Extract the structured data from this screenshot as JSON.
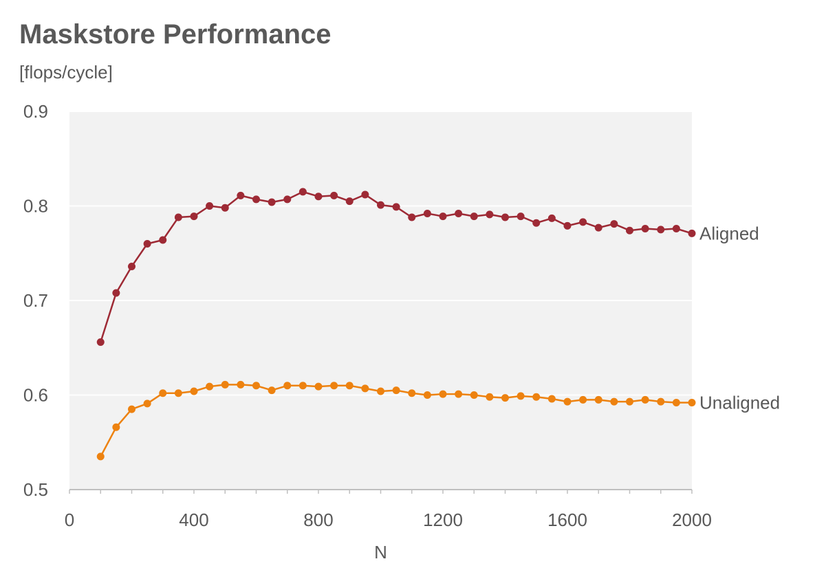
{
  "chart_data": {
    "type": "line",
    "title": "Maskstore Performance",
    "subtitle": "[flops/cycle]",
    "xlabel": "N",
    "ylabel": "",
    "xlim": [
      0,
      2000
    ],
    "ylim": [
      0.5,
      0.9
    ],
    "x_ticks": [
      0,
      400,
      800,
      1200,
      1600,
      2000
    ],
    "x_tick_labels": [
      "0",
      "400",
      "800",
      "1200",
      "1600",
      "2000"
    ],
    "y_ticks": [
      0.5,
      0.6,
      0.7,
      0.8,
      0.9
    ],
    "y_tick_labels": [
      "0.5",
      "0.6",
      "0.7",
      "0.8",
      "0.9"
    ],
    "grid": true,
    "legend": "series labels at right end of lines",
    "x": [
      100,
      150,
      200,
      250,
      300,
      350,
      400,
      450,
      500,
      550,
      600,
      650,
      700,
      750,
      800,
      850,
      900,
      950,
      1000,
      1050,
      1100,
      1150,
      1200,
      1250,
      1300,
      1350,
      1400,
      1450,
      1500,
      1550,
      1600,
      1650,
      1700,
      1750,
      1800,
      1850,
      1900,
      1950,
      2000
    ],
    "series": [
      {
        "name": "Aligned",
        "color": "#9e2a35",
        "values": [
          0.656,
          0.708,
          0.736,
          0.76,
          0.764,
          0.788,
          0.789,
          0.8,
          0.798,
          0.811,
          0.807,
          0.804,
          0.807,
          0.815,
          0.81,
          0.811,
          0.805,
          0.812,
          0.801,
          0.799,
          0.788,
          0.792,
          0.789,
          0.792,
          0.789,
          0.791,
          0.788,
          0.789,
          0.782,
          0.787,
          0.779,
          0.783,
          0.777,
          0.781,
          0.774,
          0.776,
          0.775,
          0.776,
          0.771
        ]
      },
      {
        "name": "Unaligned",
        "color": "#ed8210",
        "values": [
          0.535,
          0.566,
          0.585,
          0.591,
          0.602,
          0.602,
          0.604,
          0.609,
          0.611,
          0.611,
          0.61,
          0.605,
          0.61,
          0.61,
          0.609,
          0.61,
          0.61,
          0.607,
          0.604,
          0.605,
          0.602,
          0.6,
          0.601,
          0.601,
          0.6,
          0.598,
          0.597,
          0.599,
          0.598,
          0.596,
          0.593,
          0.595,
          0.595,
          0.593,
          0.593,
          0.595,
          0.593,
          0.592,
          0.592
        ]
      }
    ],
    "plot_background": "#f2f2f2",
    "grid_color": "#ffffff",
    "axis_color": "#bfbfbf"
  }
}
